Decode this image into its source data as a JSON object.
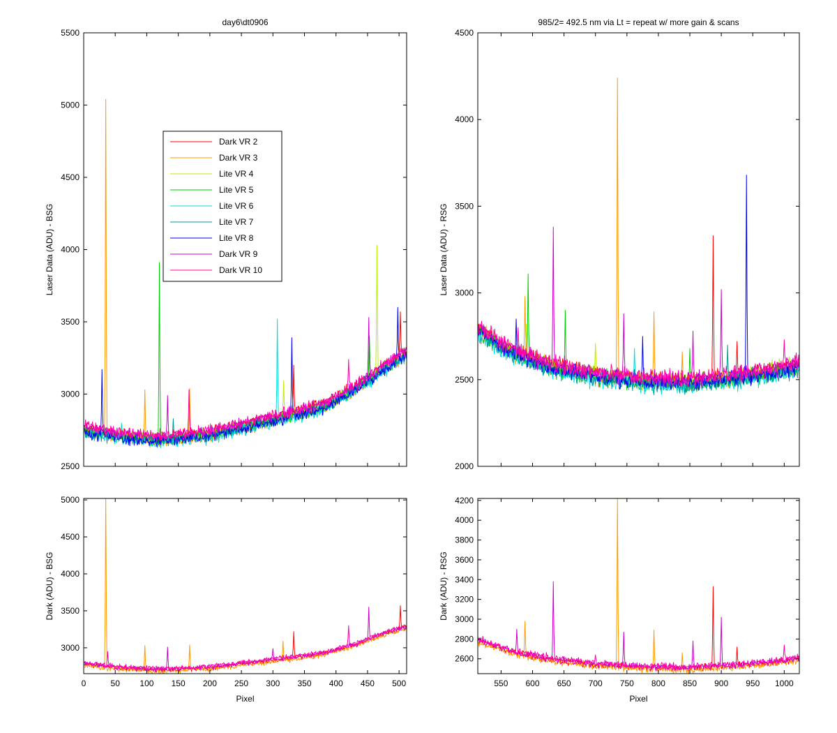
{
  "figure_title": "day6\\dt0906",
  "chart_data": [
    {
      "id": "bsg-laser",
      "type": "line",
      "title": "day6\\dt0906",
      "xlabel": "",
      "ylabel": "Laser Data (ADU) - BSG",
      "xlim": [
        0,
        512
      ],
      "ylim": [
        2500,
        5500
      ],
      "xticks": [
        50,
        100,
        150,
        200,
        250,
        300,
        350,
        400,
        450,
        500
      ],
      "xtick_labels_shown": false,
      "yticks": [
        2500,
        3000,
        3500,
        4000,
        4500,
        5000,
        5500
      ],
      "legend": {
        "placement": "upper-middle-left"
      },
      "grid": false,
      "x_range": [
        1,
        512
      ],
      "baseline": [
        [
          1,
          2760
        ],
        [
          50,
          2720
        ],
        [
          120,
          2690
        ],
        [
          200,
          2730
        ],
        [
          260,
          2790
        ],
        [
          320,
          2850
        ],
        [
          380,
          2920
        ],
        [
          430,
          3040
        ],
        [
          470,
          3170
        ],
        [
          512,
          3290
        ]
      ],
      "noise": 30,
      "series": [
        {
          "name": "Dark VR 2",
          "color": "#ff0000",
          "offset": 10,
          "spikes": [
            [
              333,
              3200
            ],
            [
              502,
              3570
            ]
          ]
        },
        {
          "name": "Dark VR 3",
          "color": "#ff9900",
          "offset": -20,
          "spikes": [
            [
              35,
              5040
            ],
            [
              97,
              3030
            ],
            [
              168,
              3040
            ]
          ]
        },
        {
          "name": "Lite VR 4",
          "color": "#bbee00",
          "offset": 0,
          "spikes": [
            [
              465,
              4030
            ],
            [
              317,
              3090
            ]
          ]
        },
        {
          "name": "Lite VR 5",
          "color": "#00cc00",
          "offset": -10,
          "spikes": [
            [
              120,
              3910
            ],
            [
              453,
              3400
            ]
          ]
        },
        {
          "name": "Lite VR 6",
          "color": "#00dddd",
          "offset": -30,
          "spikes": [
            [
              307,
              3520
            ],
            [
              60,
              2800
            ]
          ]
        },
        {
          "name": "Lite VR 7",
          "color": "#009999",
          "offset": -15,
          "spikes": [
            [
              142,
              2830
            ]
          ]
        },
        {
          "name": "Lite VR 8",
          "color": "#0000ee",
          "offset": -20,
          "spikes": [
            [
              29,
              3170
            ],
            [
              330,
              3390
            ],
            [
              498,
              3600
            ]
          ]
        },
        {
          "name": "Dark VR 9",
          "color": "#cc00cc",
          "offset": 15,
          "spikes": [
            [
              452,
              3530
            ],
            [
              133,
              2990
            ]
          ]
        },
        {
          "name": "Dark VR 10",
          "color": "#ff00aa",
          "offset": 20,
          "spikes": [
            [
              167,
              3030
            ],
            [
              420,
              3240
            ]
          ]
        }
      ]
    },
    {
      "id": "rsg-laser",
      "type": "line",
      "title": "985/2= 492.5 nm via Lt = repeat w/ more gain & scans",
      "xlabel": "",
      "ylabel": "Laser Data (ADU) - RSG",
      "xlim": [
        513,
        1024
      ],
      "ylim": [
        2000,
        4500
      ],
      "xticks": [
        550,
        600,
        650,
        700,
        750,
        800,
        850,
        900,
        950,
        1000
      ],
      "xtick_labels_shown": false,
      "yticks": [
        2000,
        2500,
        3000,
        3500,
        4000,
        4500
      ],
      "grid": false,
      "x_range": [
        513,
        1024
      ],
      "baseline": [
        [
          513,
          2800
        ],
        [
          560,
          2680
        ],
        [
          620,
          2590
        ],
        [
          700,
          2530
        ],
        [
          780,
          2500
        ],
        [
          850,
          2490
        ],
        [
          920,
          2520
        ],
        [
          980,
          2550
        ],
        [
          1024,
          2590
        ]
      ],
      "noise": 35,
      "series": [
        {
          "name": "Dark VR 2",
          "color": "#ff0000",
          "offset": 5,
          "spikes": [
            [
              887,
              3330
            ],
            [
              925,
              2720
            ]
          ]
        },
        {
          "name": "Dark VR 3",
          "color": "#ff9900",
          "offset": -10,
          "spikes": [
            [
              735,
              4240
            ],
            [
              793,
              2890
            ],
            [
              838,
              2660
            ],
            [
              588,
              2980
            ]
          ]
        },
        {
          "name": "Lite VR 4",
          "color": "#bbee00",
          "offset": 0,
          "spikes": [
            [
              700,
              2710
            ],
            [
              590,
              2820
            ]
          ]
        },
        {
          "name": "Lite VR 5",
          "color": "#00cc00",
          "offset": -20,
          "spikes": [
            [
              593,
              3110
            ],
            [
              652,
              2900
            ],
            [
              850,
              2680
            ]
          ]
        },
        {
          "name": "Lite VR 6",
          "color": "#00dddd",
          "offset": -30,
          "spikes": [
            [
              762,
              2680
            ]
          ]
        },
        {
          "name": "Lite VR 7",
          "color": "#009999",
          "offset": -25,
          "spikes": [
            [
              910,
              2700
            ]
          ]
        },
        {
          "name": "Lite VR 8",
          "color": "#0000ee",
          "offset": -15,
          "spikes": [
            [
              940,
              3680
            ],
            [
              775,
              2750
            ],
            [
              574,
              2850
            ]
          ]
        },
        {
          "name": "Dark VR 9",
          "color": "#cc00cc",
          "offset": 10,
          "spikes": [
            [
              633,
              3380
            ],
            [
              900,
              3020
            ],
            [
              745,
              2880
            ],
            [
              855,
              2780
            ]
          ]
        },
        {
          "name": "Dark VR 10",
          "color": "#ff00aa",
          "offset": 15,
          "spikes": [
            [
              1000,
              2730
            ],
            [
              577,
              2800
            ]
          ]
        }
      ]
    },
    {
      "id": "bsg-dark",
      "type": "line",
      "title": "",
      "xlabel": "Pixel",
      "ylabel": "Dark (ADU) - BSG",
      "xlim": [
        0,
        512
      ],
      "ylim": [
        2650,
        5020
      ],
      "xticks": [
        0,
        50,
        100,
        150,
        200,
        250,
        300,
        350,
        400,
        450,
        500
      ],
      "xtick_labels_shown": true,
      "yticks": [
        3000,
        3500,
        4000,
        4500,
        5000
      ],
      "grid": false,
      "x_range": [
        1,
        512
      ],
      "baseline": [
        [
          1,
          2780
        ],
        [
          50,
          2730
        ],
        [
          120,
          2700
        ],
        [
          200,
          2730
        ],
        [
          260,
          2790
        ],
        [
          320,
          2850
        ],
        [
          380,
          2920
        ],
        [
          430,
          3040
        ],
        [
          470,
          3170
        ],
        [
          512,
          3280
        ]
      ],
      "noise": 25,
      "series": [
        {
          "name": "Dark VR 2",
          "color": "#ff0000",
          "offset": 0,
          "spikes": [
            [
              333,
              3220
            ],
            [
              502,
              3570
            ]
          ]
        },
        {
          "name": "Dark VR 3",
          "color": "#ff9900",
          "offset": -20,
          "spikes": [
            [
              35,
              5020
            ],
            [
              97,
              3030
            ],
            [
              168,
              3040
            ],
            [
              316,
              3090
            ]
          ]
        },
        {
          "name": "Dark VR 9",
          "color": "#cc00cc",
          "offset": 10,
          "spikes": [
            [
              133,
              3010
            ],
            [
              452,
              3550
            ],
            [
              300,
              2990
            ]
          ]
        },
        {
          "name": "Dark VR 10",
          "color": "#ff00aa",
          "offset": 20,
          "spikes": [
            [
              38,
              2950
            ],
            [
              420,
              3300
            ]
          ]
        }
      ]
    },
    {
      "id": "rsg-dark",
      "type": "line",
      "title": "",
      "xlabel": "Pixel",
      "ylabel": "Dark (ADU) - RSG",
      "xlim": [
        513,
        1024
      ],
      "ylim": [
        2450,
        4220
      ],
      "xticks": [
        550,
        600,
        650,
        700,
        750,
        800,
        850,
        900,
        950,
        1000
      ],
      "xtick_labels_shown": true,
      "yticks": [
        2600,
        2800,
        3000,
        3200,
        3400,
        3600,
        3800,
        4000,
        4200
      ],
      "grid": false,
      "x_range": [
        513,
        1024
      ],
      "baseline": [
        [
          513,
          2780
        ],
        [
          560,
          2680
        ],
        [
          620,
          2600
        ],
        [
          700,
          2540
        ],
        [
          780,
          2510
        ],
        [
          850,
          2500
        ],
        [
          920,
          2530
        ],
        [
          980,
          2560
        ],
        [
          1024,
          2600
        ]
      ],
      "noise": 25,
      "series": [
        {
          "name": "Dark VR 2",
          "color": "#ff0000",
          "offset": 0,
          "spikes": [
            [
              887,
              3330
            ],
            [
              925,
              2720
            ]
          ]
        },
        {
          "name": "Dark VR 3",
          "color": "#ff9900",
          "offset": -15,
          "spikes": [
            [
              735,
              4220
            ],
            [
              793,
              2890
            ],
            [
              588,
              2980
            ],
            [
              838,
              2660
            ]
          ]
        },
        {
          "name": "Dark VR 9",
          "color": "#cc00cc",
          "offset": 10,
          "spikes": [
            [
              633,
              3380
            ],
            [
              900,
              3020
            ],
            [
              745,
              2870
            ],
            [
              575,
              2900
            ],
            [
              855,
              2780
            ]
          ]
        },
        {
          "name": "Dark VR 10",
          "color": "#ff00aa",
          "offset": 20,
          "spikes": [
            [
              1000,
              2740
            ],
            [
              700,
              2640
            ]
          ]
        }
      ]
    }
  ]
}
